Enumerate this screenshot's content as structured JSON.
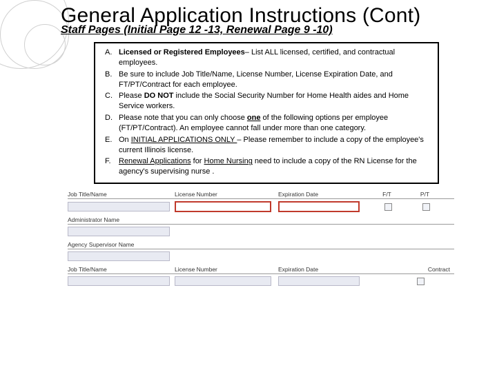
{
  "title": "General Application Instructions (Cont)",
  "subtitle": "Staff Pages (Initial Page 12 -13, Renewal Page 9 -10)",
  "instructions": [
    {
      "letter": "A.",
      "html": "<span class='b'>Licensed  or Registered Employees</span>– List ALL licensed, certified, and contractual employees."
    },
    {
      "letter": "B.",
      "html": "Be sure to include Job Title/Name, License Number, License Expiration Date, and FT/PT/Contract for each employee."
    },
    {
      "letter": "C.",
      "html": "Please <span class='b'>DO NOT</span> include the Social Security Number for Home Health aides and Home Service workers."
    },
    {
      "letter": "D.",
      "html": "Please note that you can only choose <span class='b u'>one</span> of the following options per employee (FT/PT/Contract).  An employee cannot fall under more than one category."
    },
    {
      "letter": "E.",
      "html": "On <span class='u'>INITIAL APPLICATIONS ONLY </span>– Please remember to include a copy of the employee's current Illinois license."
    },
    {
      "letter": "F.",
      "html": "<span class='u'>Renewal Applications</span> for <span class='u'>Home Nursing</span> need to include a copy of the RN License for the agency's supervising nurse ."
    }
  ],
  "form": {
    "headers": {
      "job_title": "Job Title/Name",
      "license_number": "License Number",
      "expiration_date": "Expiration Date",
      "ft": "F/T",
      "pt": "P/T",
      "contract": "Contract"
    },
    "admin_name": "Administrator Name",
    "supervisor_name": "Agency Supervisor Name"
  },
  "colors": {
    "highlight_border": "#c0392b",
    "field_bg": "#e8eaf2",
    "circle_border": "#d0d0d0"
  }
}
